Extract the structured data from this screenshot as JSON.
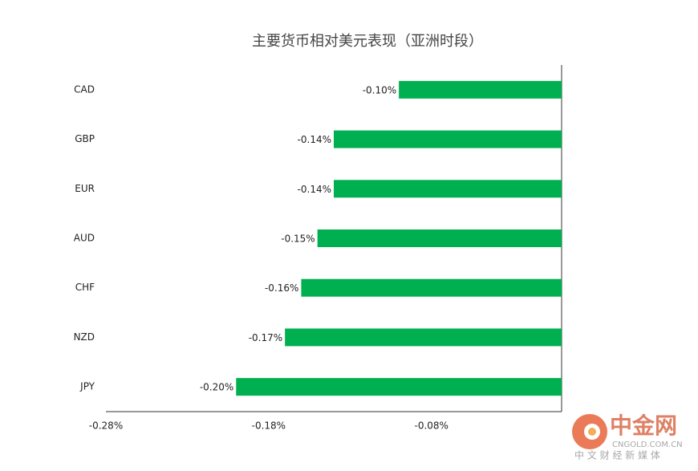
{
  "chart_data": {
    "type": "hbar",
    "title": "主要货币相对美元表现（亚洲时段）",
    "categories": [
      "CAD",
      "GBP",
      "EUR",
      "AUD",
      "CHF",
      "NZD",
      "JPY"
    ],
    "values": [
      -0.1,
      -0.14,
      -0.14,
      -0.15,
      -0.16,
      -0.17,
      -0.2
    ],
    "value_labels": [
      "-0.10%",
      "-0.14%",
      "-0.14%",
      "-0.15%",
      "-0.16%",
      "-0.17%",
      "-0.20%"
    ],
    "color": "#00b050",
    "xlim": [
      -0.28,
      0
    ],
    "xticks": [
      {
        "value": -0.28,
        "label": "-0.28%"
      },
      {
        "value": -0.18,
        "label": "-0.18%"
      },
      {
        "value": -0.08,
        "label": "-0.08%"
      }
    ],
    "grid": false
  },
  "watermark": {
    "name": "中金网",
    "site": "CNGOLD.COM.CN",
    "tagline": "中 文 财 经 新 媒 体"
  }
}
